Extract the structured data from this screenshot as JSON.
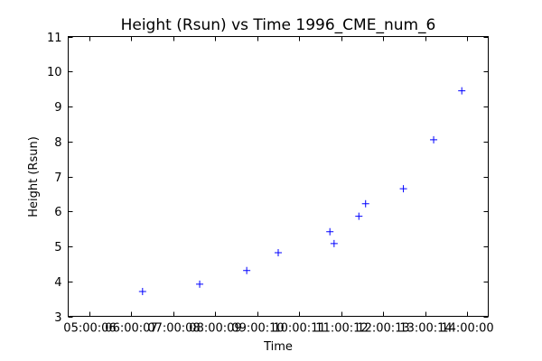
{
  "chart_data": {
    "type": "scatter",
    "title": "Height (Rsun) vs Time 1996_CME_num_6",
    "xlabel": "Time",
    "ylabel": "Height (Rsun)",
    "x_unit": "hours",
    "xlim": [
      4.5,
      14.5
    ],
    "ylim": [
      3,
      11
    ],
    "xticks": [
      {
        "value": 5,
        "label": "05:00:06"
      },
      {
        "value": 6,
        "label": "06:00:07"
      },
      {
        "value": 7,
        "label": "07:00:08"
      },
      {
        "value": 8,
        "label": "08:00:09"
      },
      {
        "value": 9,
        "label": "09:00:10"
      },
      {
        "value": 10,
        "label": "10:00:11"
      },
      {
        "value": 11,
        "label": "11:00:12"
      },
      {
        "value": 12,
        "label": "12:00:13"
      },
      {
        "value": 13,
        "label": "13:00:14"
      },
      {
        "value": 14,
        "label": "14:00:00"
      }
    ],
    "yticks": [
      3,
      4,
      5,
      6,
      7,
      8,
      9,
      10,
      11
    ],
    "marker": "+",
    "marker_color": "#0000ff",
    "grid": false,
    "points": [
      {
        "x": 6.27,
        "y": 3.71
      },
      {
        "x": 7.63,
        "y": 3.92
      },
      {
        "x": 8.75,
        "y": 4.31
      },
      {
        "x": 9.5,
        "y": 4.82
      },
      {
        "x": 10.73,
        "y": 5.42
      },
      {
        "x": 10.83,
        "y": 5.08
      },
      {
        "x": 11.42,
        "y": 5.86
      },
      {
        "x": 11.58,
        "y": 6.22
      },
      {
        "x": 12.48,
        "y": 6.65
      },
      {
        "x": 13.2,
        "y": 8.05
      },
      {
        "x": 13.87,
        "y": 9.45
      }
    ]
  }
}
